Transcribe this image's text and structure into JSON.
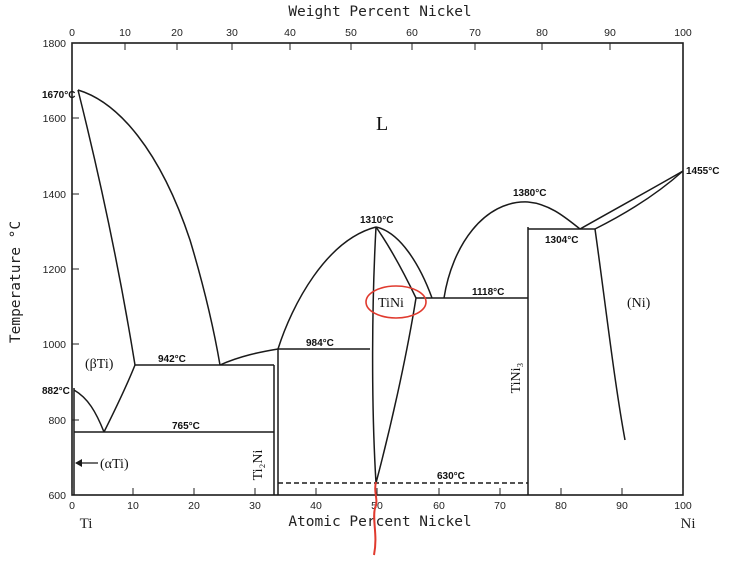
{
  "axes": {
    "top_title": "Weight Percent Nickel",
    "bottom_title": "Atomic Percent Nickel",
    "y_title": "Temperature °C",
    "left_element": "Ti",
    "right_element": "Ni",
    "x_range": [
      0,
      100
    ],
    "y_range": [
      600,
      1800
    ],
    "bottom_ticks": [
      "0",
      "10",
      "20",
      "30",
      "40",
      "50",
      "60",
      "70",
      "80",
      "90",
      "100"
    ],
    "top_ticks": [
      "0",
      "10",
      "20",
      "30",
      "40",
      "50",
      "60",
      "70",
      "80",
      "90",
      "100"
    ],
    "y_ticks": [
      "600",
      "800",
      "1000",
      "1200",
      "1400",
      "1600",
      "1800"
    ]
  },
  "temperatures": {
    "ti_melt": "1670°C",
    "ti_transform": "882°C",
    "eutectic_942": "942°C",
    "eutectoid_765": "765°C",
    "peritectic_984": "984°C",
    "tini_melt": "1310°C",
    "eutectic_1118": "1118°C",
    "tini3_melt": "1380°C",
    "eutectic_1304": "1304°C",
    "ni_melt": "1455°C",
    "order_630": "630°C"
  },
  "phases": {
    "liquid": "L",
    "beta_ti": "(βTi)",
    "alpha_ti": "(αTi)",
    "ti2ni": "Ti₂Ni",
    "tini": "TiNi",
    "tini3": "TiNi₃",
    "ni": "(Ni)"
  },
  "annotation_color": "#e03a2e",
  "line_color": "#1a1a1a"
}
